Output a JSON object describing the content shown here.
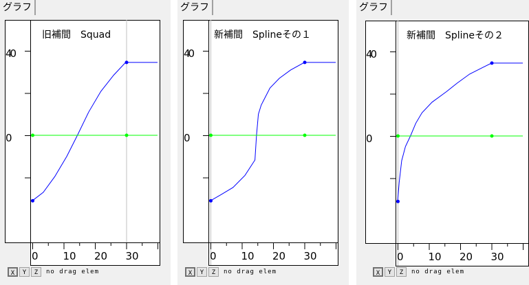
{
  "tab_label": "グラフ",
  "buttons": [
    "X",
    "Y",
    "Z"
  ],
  "status_text": "no drag elem",
  "colors": {
    "curve": "#0000ff",
    "zero_track": "#00ff00",
    "cursor": "#c0c0c0",
    "frame": "#000000"
  },
  "chart_data": [
    {
      "type": "line",
      "title": "旧補間　Squad",
      "cursor_frame": 30,
      "xlim": [
        -0.5,
        40
      ],
      "ylim": [
        -50,
        55
      ],
      "x_ticks": [
        0,
        5,
        10,
        15,
        20,
        25,
        30,
        35,
        40
      ],
      "x_tick_labels": [
        "0",
        "10",
        "20",
        "30"
      ],
      "y_ticks": [
        -20,
        0,
        20,
        40
      ],
      "y_tick_labels": [
        "40",
        "0"
      ],
      "series": [
        {
          "color": "#0000ff",
          "points": [
            [
              0,
              -31
            ],
            [
              3.5,
              -27
            ],
            [
              7.2,
              -19.5
            ],
            [
              11,
              -10
            ],
            [
              14.4,
              0
            ],
            [
              18,
              11
            ],
            [
              21.9,
              20.8
            ],
            [
              26,
              28.5
            ],
            [
              29.8,
              34.5
            ],
            [
              40,
              34.5
            ]
          ],
          "keys": [
            [
              0,
              -31
            ],
            [
              30,
              34.5
            ]
          ]
        },
        {
          "color": "#00ff00",
          "points": [
            [
              0,
              0
            ],
            [
              40,
              0
            ]
          ],
          "keys": [
            [
              0,
              0
            ],
            [
              30,
              0
            ]
          ]
        }
      ]
    },
    {
      "type": "line",
      "title": "新補間　Splineその１",
      "cursor_frame": 0,
      "xlim": [
        -0.5,
        40
      ],
      "ylim": [
        -50,
        55
      ],
      "x_ticks": [
        0,
        5,
        10,
        15,
        20,
        25,
        30,
        35,
        40
      ],
      "x_tick_labels": [
        "0",
        "10",
        "20",
        "30"
      ],
      "y_ticks": [
        -20,
        0,
        20,
        40
      ],
      "y_tick_labels": [
        "40",
        "0"
      ],
      "series": [
        {
          "color": "#0000ff",
          "points": [
            [
              0,
              -31
            ],
            [
              3.5,
              -28
            ],
            [
              7.2,
              -24.7
            ],
            [
              11,
              -19
            ],
            [
              14.2,
              -11.7
            ],
            [
              14.7,
              0
            ],
            [
              15.3,
              10
            ],
            [
              16.2,
              14.3
            ],
            [
              19,
              22.4
            ],
            [
              22,
              27
            ],
            [
              25.6,
              30.9
            ],
            [
              30,
              34.5
            ],
            [
              40,
              34.5
            ]
          ],
          "keys": [
            [
              0,
              -31
            ],
            [
              30,
              34.5
            ]
          ]
        },
        {
          "color": "#00ff00",
          "points": [
            [
              0,
              0
            ],
            [
              40,
              0
            ]
          ],
          "keys": [
            [
              0,
              0
            ],
            [
              30,
              0
            ]
          ]
        }
      ]
    },
    {
      "type": "line",
      "title": "新補間　Splineその２",
      "cursor_frame": 0,
      "xlim": [
        -0.5,
        40
      ],
      "ylim": [
        -50,
        55
      ],
      "x_ticks": [
        0,
        5,
        10,
        15,
        20,
        25,
        30,
        35,
        40
      ],
      "x_tick_labels": [
        "0",
        "10",
        "20",
        "30"
      ],
      "y_ticks": [
        -20,
        0,
        20,
        40
      ],
      "y_tick_labels": [
        "40",
        "0"
      ],
      "series": [
        {
          "color": "#0000ff",
          "points": [
            [
              0,
              -31
            ],
            [
              0.5,
              -22
            ],
            [
              1.3,
              -11.7
            ],
            [
              2.5,
              -5
            ],
            [
              4.1,
              0
            ],
            [
              5.8,
              6
            ],
            [
              7.8,
              11
            ],
            [
              11,
              16
            ],
            [
              15.7,
              21.1
            ],
            [
              19,
              25
            ],
            [
              23,
              29.3
            ],
            [
              27,
              32.3
            ],
            [
              30,
              34.5
            ],
            [
              40,
              34.5
            ]
          ],
          "keys": [
            [
              0,
              -31
            ],
            [
              30,
              34.5
            ]
          ]
        },
        {
          "color": "#00ff00",
          "points": [
            [
              0,
              0
            ],
            [
              40,
              0
            ]
          ],
          "keys": [
            [
              0,
              0
            ],
            [
              30,
              0
            ]
          ]
        }
      ]
    }
  ]
}
